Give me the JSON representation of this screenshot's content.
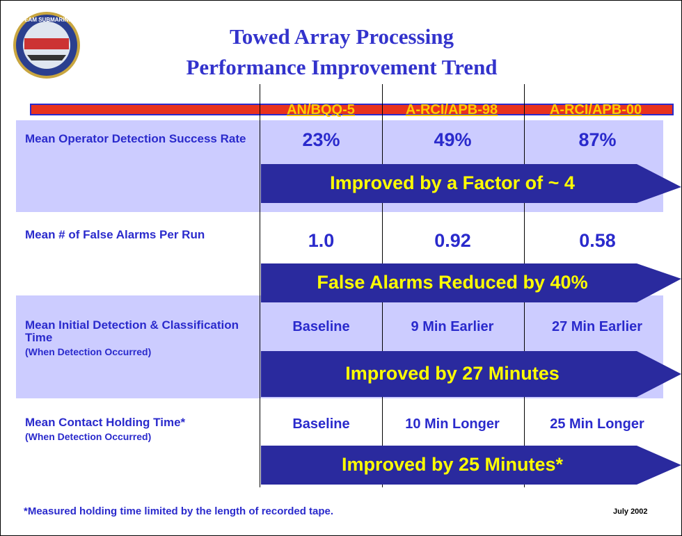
{
  "header": {
    "logo_text": "TEAM SUBMARINE",
    "title_line1": "Towed Array Processing",
    "title_line2": "Performance Improvement Trend"
  },
  "table": {
    "columns": [
      "AN/BQQ-5",
      "A-RCI/APB-98",
      "A-RCI/APB-00"
    ],
    "rows": [
      {
        "label": "Mean Operator Detection Success Rate",
        "values": [
          "23%",
          "49%",
          "87%"
        ],
        "arrow": "Improved by a Factor of ~ 4"
      },
      {
        "label": "Mean # of False Alarms Per Run",
        "values": [
          "1.0",
          "0.92",
          "0.58"
        ],
        "arrow": "False Alarms Reduced by 40%"
      },
      {
        "label": "Mean Initial Detection & Classification Time",
        "note": "(When Detection Occurred)",
        "values": [
          "Baseline",
          "9 Min Earlier",
          "27 Min Earlier"
        ],
        "arrow": "Improved by 27 Minutes"
      },
      {
        "label": "Mean Contact Holding Time*",
        "note": "(When Detection Occurred)",
        "values": [
          "Baseline",
          "10 Min Longer",
          "25 Min Longer"
        ],
        "arrow": "Improved by 25 Minutes*"
      }
    ]
  },
  "footer": {
    "footnote": "*Measured holding time limited by the length of recorded tape.",
    "date": "July 2002"
  }
}
